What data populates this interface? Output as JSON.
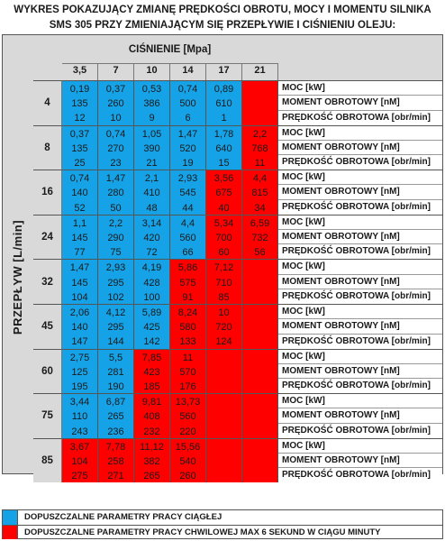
{
  "title": "WYKRES POKAZUJĄCY ZMIANĘ PRĘDKOŚCI OBROTU, MOCY I MOMENTU SILNIKA SMS 305 PRZY ZMIENIAJĄCYM SIĘ PRZEPŁYWIE I CIŚNIENIU OLEJU:",
  "pressure_label": "CIŚNIENIE  [Mpa]",
  "flow_label": "PRZEPŁYW [L/min]",
  "pressures": [
    "3,5",
    "7",
    "10",
    "14",
    "17",
    "21"
  ],
  "row_labels": [
    "MOC [kW]",
    "MOMENT OBROTOWY [nM]",
    "PRĘDKOŚĆ OBROTOWA [obr/min]"
  ],
  "colors": {
    "blue": "#16a2e6",
    "red": "#ff0000"
  },
  "rows": [
    {
      "flow": "4",
      "cells": [
        {
          "c": "blue",
          "v": [
            "0,19",
            "135",
            "12"
          ]
        },
        {
          "c": "blue",
          "v": [
            "0,37",
            "260",
            "10"
          ]
        },
        {
          "c": "blue",
          "v": [
            "0,53",
            "386",
            "9"
          ]
        },
        {
          "c": "blue",
          "v": [
            "0,74",
            "500",
            "6"
          ]
        },
        {
          "c": "blue",
          "v": [
            "0,89",
            "610",
            "1"
          ]
        },
        {
          "c": "red",
          "v": [
            "",
            "",
            ""
          ]
        }
      ]
    },
    {
      "flow": "8",
      "cells": [
        {
          "c": "blue",
          "v": [
            "0,37",
            "135",
            "25"
          ]
        },
        {
          "c": "blue",
          "v": [
            "0,74",
            "270",
            "23"
          ]
        },
        {
          "c": "blue",
          "v": [
            "1,05",
            "390",
            "21"
          ]
        },
        {
          "c": "blue",
          "v": [
            "1,47",
            "520",
            "19"
          ]
        },
        {
          "c": "blue",
          "v": [
            "1,78",
            "640",
            "15"
          ]
        },
        {
          "c": "red",
          "v": [
            "2,2",
            "768",
            "11"
          ]
        }
      ]
    },
    {
      "flow": "16",
      "cells": [
        {
          "c": "blue",
          "v": [
            "0,74",
            "140",
            "52"
          ]
        },
        {
          "c": "blue",
          "v": [
            "1,47",
            "280",
            "50"
          ]
        },
        {
          "c": "blue",
          "v": [
            "2,1",
            "410",
            "48"
          ]
        },
        {
          "c": "blue",
          "v": [
            "2,93",
            "545",
            "44"
          ]
        },
        {
          "c": "red",
          "v": [
            "3,56",
            "675",
            "40"
          ]
        },
        {
          "c": "red",
          "v": [
            "4,4",
            "815",
            "34"
          ]
        }
      ]
    },
    {
      "flow": "24",
      "cells": [
        {
          "c": "blue",
          "v": [
            "1,1",
            "145",
            "77"
          ]
        },
        {
          "c": "blue",
          "v": [
            "2,2",
            "290",
            "75"
          ]
        },
        {
          "c": "blue",
          "v": [
            "3,14",
            "420",
            "72"
          ]
        },
        {
          "c": "blue",
          "v": [
            "4,4",
            "560",
            "66"
          ]
        },
        {
          "c": "red",
          "v": [
            "5,34",
            "700",
            "60"
          ]
        },
        {
          "c": "red",
          "v": [
            "6,59",
            "732",
            "56"
          ]
        }
      ]
    },
    {
      "flow": "32",
      "cells": [
        {
          "c": "blue",
          "v": [
            "1,47",
            "145",
            "104"
          ]
        },
        {
          "c": "blue",
          "v": [
            "2,93",
            "295",
            "102"
          ]
        },
        {
          "c": "blue",
          "v": [
            "4,19",
            "428",
            "100"
          ]
        },
        {
          "c": "red",
          "v": [
            "5,86",
            "575",
            "91"
          ]
        },
        {
          "c": "red",
          "v": [
            "7,12",
            "710",
            "85"
          ]
        },
        {
          "c": "red",
          "v": [
            "",
            "",
            ""
          ]
        }
      ]
    },
    {
      "flow": "45",
      "cells": [
        {
          "c": "blue",
          "v": [
            "2,06",
            "140",
            "147"
          ]
        },
        {
          "c": "blue",
          "v": [
            "4,12",
            "295",
            "144"
          ]
        },
        {
          "c": "blue",
          "v": [
            "5,89",
            "425",
            "142"
          ]
        },
        {
          "c": "red",
          "v": [
            "8,24",
            "580",
            "133"
          ]
        },
        {
          "c": "red",
          "v": [
            "10",
            "720",
            "124"
          ]
        },
        {
          "c": "red",
          "v": [
            "",
            "",
            ""
          ]
        }
      ]
    },
    {
      "flow": "60",
      "cells": [
        {
          "c": "blue",
          "v": [
            "2,75",
            "125",
            "195"
          ]
        },
        {
          "c": "blue",
          "v": [
            "5,5",
            "281",
            "190"
          ]
        },
        {
          "c": "red",
          "v": [
            "7,85",
            "423",
            "185"
          ]
        },
        {
          "c": "red",
          "v": [
            "11",
            "570",
            "176"
          ]
        },
        {
          "c": "red",
          "v": [
            "",
            "",
            ""
          ]
        },
        {
          "c": "red",
          "v": [
            "",
            "",
            ""
          ]
        }
      ]
    },
    {
      "flow": "75",
      "cells": [
        {
          "c": "blue",
          "v": [
            "3,44",
            "110",
            "243"
          ]
        },
        {
          "c": "blue",
          "v": [
            "6,87",
            "265",
            "236"
          ]
        },
        {
          "c": "red",
          "v": [
            "9,81",
            "408",
            "232"
          ]
        },
        {
          "c": "red",
          "v": [
            "13,73",
            "560",
            "220"
          ]
        },
        {
          "c": "red",
          "v": [
            "",
            "",
            ""
          ]
        },
        {
          "c": "red",
          "v": [
            "",
            "",
            ""
          ]
        }
      ]
    },
    {
      "flow": "85",
      "cells": [
        {
          "c": "red",
          "v": [
            "3,67",
            "104",
            "275"
          ]
        },
        {
          "c": "red",
          "v": [
            "7,78",
            "258",
            "271"
          ]
        },
        {
          "c": "red",
          "v": [
            "11,12",
            "382",
            "265"
          ]
        },
        {
          "c": "red",
          "v": [
            "15,56",
            "540",
            "260"
          ]
        },
        {
          "c": "red",
          "v": [
            "",
            "",
            ""
          ]
        },
        {
          "c": "red",
          "v": [
            "",
            "",
            ""
          ]
        }
      ]
    }
  ],
  "legend": [
    {
      "color": "blue",
      "text": "DOPUSZCZALNE PARAMETRY PRACY CIĄGŁEJ"
    },
    {
      "color": "red",
      "text": "DOPUSZCZALNE PARAMETRY PRACY CHWILOWEJ MAX 6 SEKUND W CIĄGU MINUTY"
    }
  ]
}
